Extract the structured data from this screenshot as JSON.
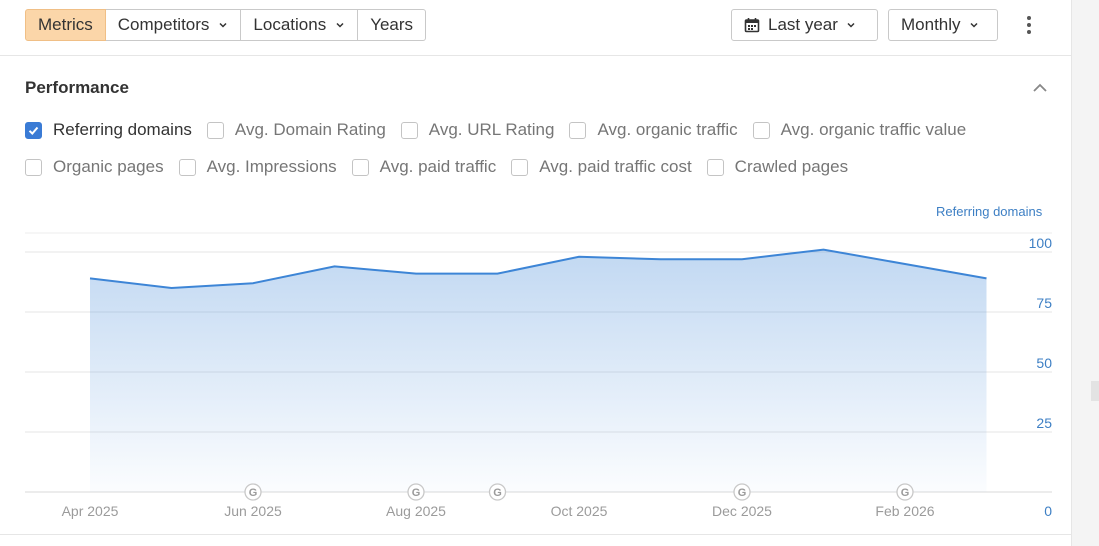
{
  "toolbar": {
    "tabs": [
      {
        "label": "Metrics",
        "active": true,
        "dropdown": false
      },
      {
        "label": "Competitors",
        "active": false,
        "dropdown": true
      },
      {
        "label": "Locations",
        "active": false,
        "dropdown": true
      },
      {
        "label": "Years",
        "active": false,
        "dropdown": false
      }
    ],
    "date_range": {
      "label": "Last year",
      "icon": "calendar-icon"
    },
    "interval": {
      "label": "Monthly"
    },
    "more_icon": "kebab-menu-icon"
  },
  "performance": {
    "title": "Performance",
    "collapse_icon": "chevron-up-icon",
    "metrics_row1": [
      {
        "label": "Referring domains",
        "checked": true
      },
      {
        "label": "Avg. Domain Rating",
        "checked": false
      },
      {
        "label": "Avg. URL Rating",
        "checked": false
      },
      {
        "label": "Avg. organic traffic",
        "checked": false
      },
      {
        "label": "Avg. organic traffic value",
        "checked": false
      }
    ],
    "metrics_row2": [
      {
        "label": "Organic pages",
        "checked": false
      },
      {
        "label": "Avg. Impressions",
        "checked": false
      },
      {
        "label": "Avg. paid traffic",
        "checked": false
      },
      {
        "label": "Avg. paid traffic cost",
        "checked": false
      },
      {
        "label": "Crawled pages",
        "checked": false
      }
    ]
  },
  "colors": {
    "accent": "#3a7bd5",
    "line": "#3d85d6",
    "axis_text": "#3d7fc4",
    "tab_active": "#fbd6a9"
  },
  "chart_data": {
    "type": "area",
    "series": [
      {
        "name": "Referring domains",
        "values": [
          89,
          85,
          87,
          94,
          91,
          91,
          98,
          97,
          97,
          101,
          95,
          89
        ]
      }
    ],
    "x": [
      "2025-04",
      "2025-05",
      "2025-06",
      "2025-07",
      "2025-08",
      "2025-09",
      "2025-10",
      "2025-11",
      "2025-12",
      "2026-01",
      "2026-02",
      "2026-03"
    ],
    "x_tick_labels": [
      {
        "x": "2025-04",
        "label": "Apr 2025"
      },
      {
        "x": "2025-06",
        "label": "Jun 2025"
      },
      {
        "x": "2025-08",
        "label": "Aug 2025"
      },
      {
        "x": "2025-10",
        "label": "Oct 2025"
      },
      {
        "x": "2025-12",
        "label": "Dec 2025"
      },
      {
        "x": "2026-02",
        "label": "Feb 2026"
      }
    ],
    "y_ticks": [
      0,
      25,
      50,
      75,
      100
    ],
    "ylim": [
      0,
      100
    ],
    "y_axis_side": "right",
    "grid": true,
    "annotations": [
      {
        "x": "2025-06",
        "label": "G"
      },
      {
        "x": "2025-08",
        "label": "G"
      },
      {
        "x": "2025-09",
        "label": "G"
      },
      {
        "x": "2025-12",
        "label": "G"
      },
      {
        "x": "2026-02",
        "label": "G"
      }
    ]
  }
}
